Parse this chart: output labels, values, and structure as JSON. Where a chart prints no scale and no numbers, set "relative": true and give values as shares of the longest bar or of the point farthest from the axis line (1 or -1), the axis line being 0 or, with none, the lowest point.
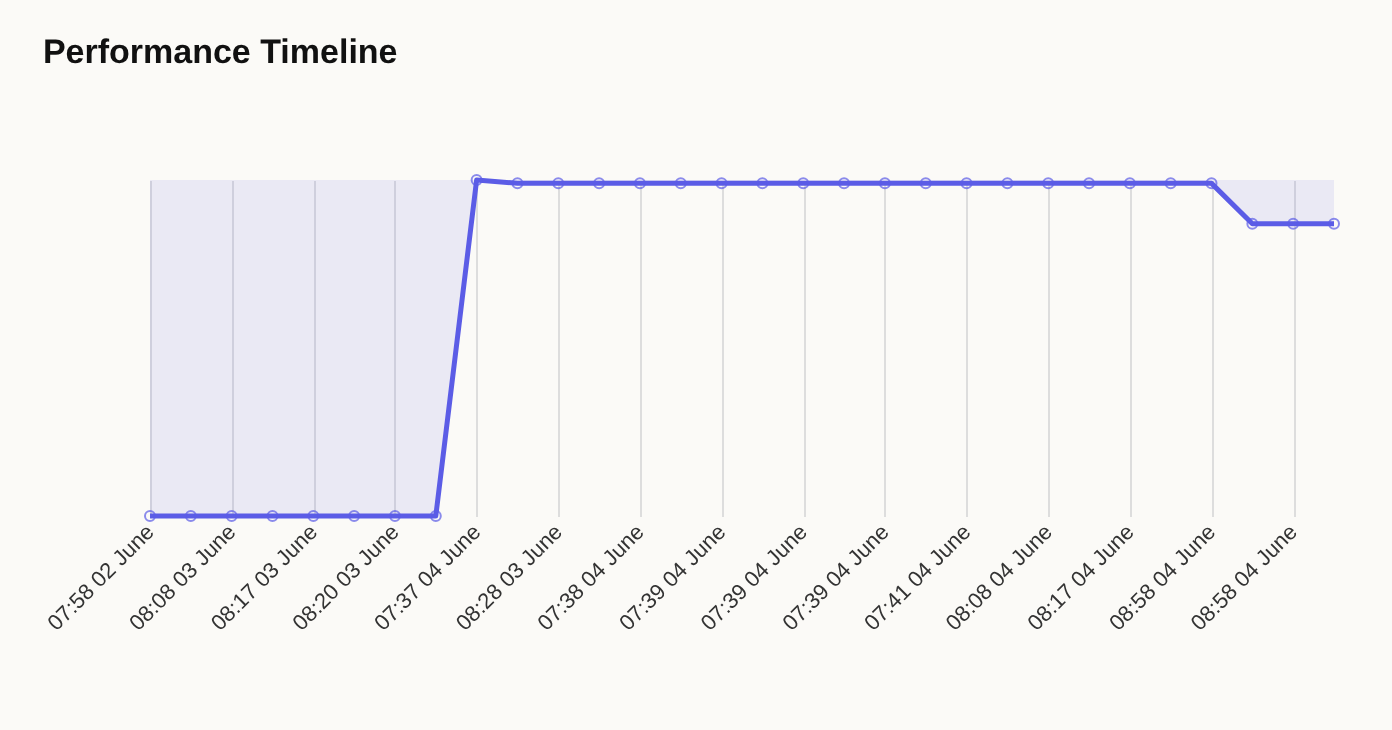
{
  "chart_data": {
    "type": "line",
    "title": "Performance Timeline",
    "relative": true,
    "categories": [
      "07:58 02 June",
      null,
      "08:08 03 June",
      null,
      "08:17 03 June",
      null,
      "08:20 03 June",
      null,
      "07:37 04 June",
      null,
      "08:28 03 June",
      null,
      "07:38 04 June",
      null,
      "07:39 04 June",
      null,
      "07:39 04 June",
      null,
      "07:39 04 June",
      null,
      "07:41 04 June",
      null,
      "08:08 04 June",
      null,
      "08:17 04 June",
      null,
      "08:58 04 June",
      null,
      "08:58 04 June",
      null
    ],
    "series": [
      {
        "color": "#5b5ce6",
        "values": [
          0,
          0,
          0,
          0,
          0,
          0,
          0,
          0,
          1,
          0.99,
          0.99,
          0.99,
          0.99,
          0.99,
          0.99,
          0.99,
          0.99,
          0.99,
          0.99,
          0.99,
          0.99,
          0.99,
          0.99,
          0.99,
          0.99,
          0.99,
          0.99,
          0.87,
          0.87,
          0.87
        ],
        "lower": [
          0,
          0,
          0,
          0,
          0,
          0,
          0,
          0,
          1,
          0.99,
          0.99,
          0.99,
          0.99,
          0.99,
          0.99,
          0.99,
          0.99,
          0.99,
          0.99,
          0.99,
          0.99,
          0.99,
          0.99,
          0.99,
          0.99,
          0.99,
          0.99,
          0.87,
          0.87,
          0.87
        ],
        "upper": [
          1,
          1,
          1,
          1,
          1,
          1,
          1,
          1,
          1,
          1,
          1,
          1,
          1,
          1,
          1,
          1,
          1,
          1,
          1,
          1,
          1,
          1,
          1,
          1,
          1,
          1,
          1,
          1,
          1,
          1
        ]
      }
    ],
    "grid": "x",
    "marker": "circle",
    "line_style": "solid"
  }
}
